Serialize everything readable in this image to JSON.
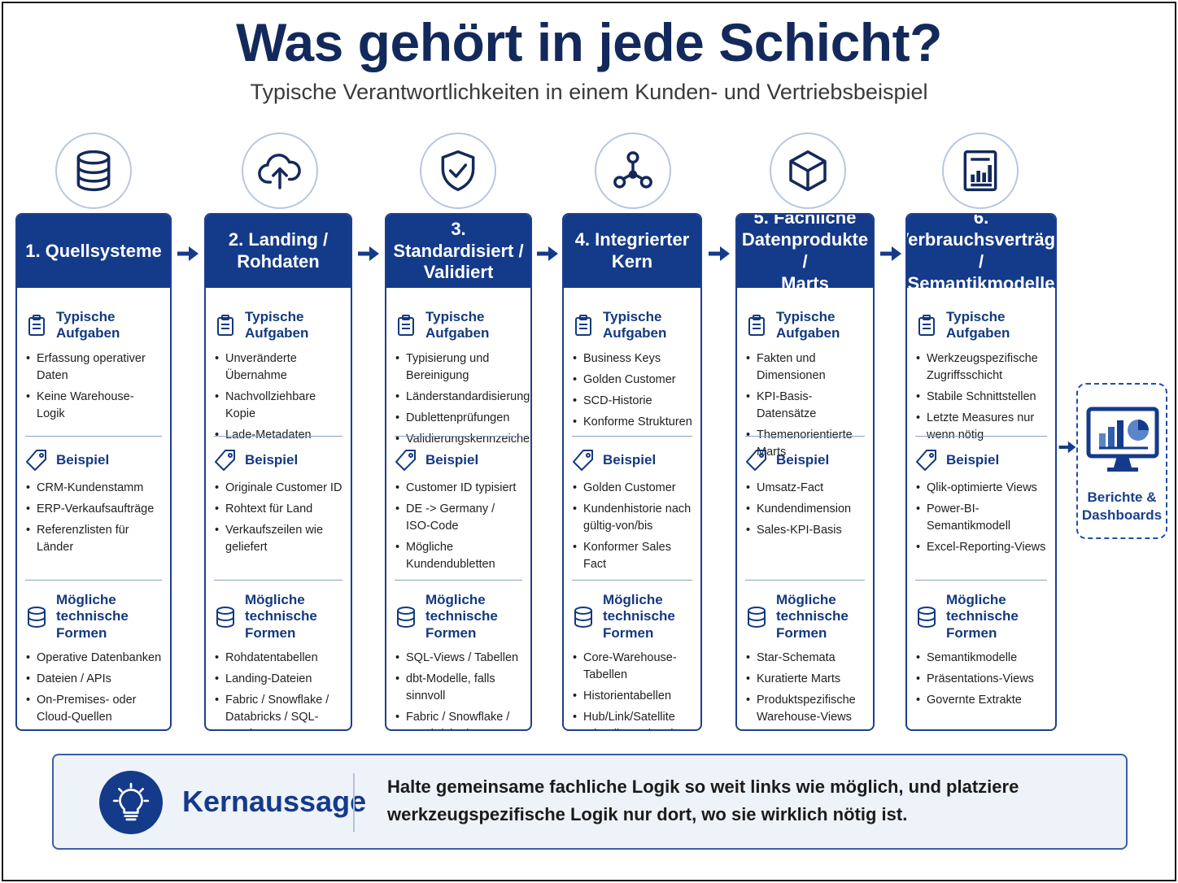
{
  "title": "Was gehört in jede Schicht?",
  "subtitle": "Typische Verantwortlichkeiten in einem Kunden- und Vertriebsbeispiel",
  "section_labels": {
    "tasks": "Typische Aufgaben",
    "example": "Beispiel",
    "forms_line1": "Mögliche",
    "forms_line2": "technische Formen"
  },
  "columns": [
    {
      "title_lines": [
        "1. Quellsysteme"
      ],
      "icon": "database-icon",
      "tasks": [
        "Erfassung operativer Daten",
        "Keine Warehouse-Logik"
      ],
      "examples": [
        "CRM-Kundenstamm",
        "ERP-Verkaufsaufträge",
        "Referenzlisten für Länder"
      ],
      "forms": [
        "Operative Datenbanken",
        "Dateien / APIs",
        "On-Premises- oder Cloud-Quellen"
      ]
    },
    {
      "title_lines": [
        "2. Landing /",
        "Rohdaten"
      ],
      "icon": "cloud-upload-icon",
      "tasks": [
        "Unveränderte Übernahme",
        "Nachvollziehbare Kopie",
        "Lade-Metadaten"
      ],
      "examples": [
        "Originale Customer ID",
        "Rohtext für Land",
        "Verkaufszeilen wie geliefert"
      ],
      "forms": [
        "Rohdatentabellen",
        "Landing-Dateien",
        "Fabric / Snowflake / Databricks / SQL-Staging"
      ]
    },
    {
      "title_lines": [
        "3. Standardisiert /",
        "Validiert"
      ],
      "icon": "shield-check-icon",
      "tasks": [
        "Typisierung und Bereinigung",
        "Länderstandardisierung",
        "Dublettenprüfungen",
        "Validierungskennzeichen"
      ],
      "examples": [
        "Customer ID typisiert",
        "DE -> Germany / ISO-Code",
        "Mögliche Kundendubletten"
      ],
      "forms": [
        "SQL-Views / Tabellen",
        "dbt-Modelle, falls sinnvoll",
        "Fabric / Snowflake / Databricks / On-Prem-SQL"
      ]
    },
    {
      "title_lines": [
        "4. Integrierter",
        "Kern"
      ],
      "icon": "network-icon",
      "tasks": [
        "Business Keys",
        "Golden Customer",
        "SCD-Historie",
        "Konforme Strukturen"
      ],
      "examples": [
        "Golden Customer",
        "Kundenhistorie nach gültig-von/bis",
        "Konformer Sales Fact"
      ],
      "forms": [
        "Core-Warehouse-Tabellen",
        "Historientabellen",
        "Hub/Link/Satellite oder dimensionaler Kern, wo passend"
      ]
    },
    {
      "title_lines": [
        "5. Fachliche",
        "Datenprodukte /",
        "Marts"
      ],
      "icon": "cube-icon",
      "tasks": [
        "Fakten und Dimensionen",
        "KPI-Basis-Datensätze",
        "Themenorientierte Marts"
      ],
      "examples": [
        "Umsatz-Fact",
        "Kundendimension",
        "Sales-KPI-Basis"
      ],
      "forms": [
        "Star-Schemata",
        "Kuratierte Marts",
        "Produktspezifische Warehouse-Views"
      ]
    },
    {
      "title_lines": [
        "6. Verbrauchsverträge /",
        "Semantikmodelle"
      ],
      "icon": "report-chart-icon",
      "tasks": [
        "Werkzeugspezifische Zugriffsschicht",
        "Stabile Schnittstellen",
        "Letzte Measures nur wenn nötig"
      ],
      "examples": [
        "Qlik-optimierte Views",
        "Power-BI-Semantikmodell",
        "Excel-Reporting-Views"
      ],
      "forms": [
        "Semantikmodelle",
        "Präsentations-Views",
        "Governte Extrakte"
      ]
    }
  ],
  "final_box": {
    "label_lines": [
      "Berichte &",
      "Dashboards"
    ],
    "icon": "monitor-dashboard-icon"
  },
  "key_message": {
    "label": "Kernaussage",
    "icon": "lightbulb-icon",
    "text_lines": [
      "Halte gemeinsame fachliche Logik so weit links wie möglich, und platziere",
      "werkzeugspezifische Logik nur dort, wo sie wirklich nötig ist."
    ]
  },
  "colors": {
    "primary": "#143a8a",
    "accent": "#1d4fa8",
    "title": "#13295b"
  }
}
